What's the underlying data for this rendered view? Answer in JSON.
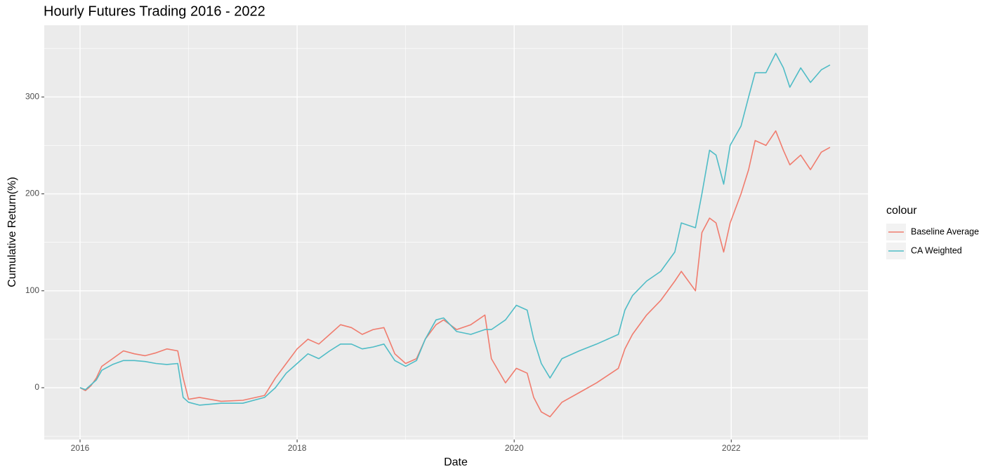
{
  "chart_data": {
    "type": "line",
    "title": "Hourly Futures Trading 2016 - 2022",
    "x_label": "Date",
    "y_label": "Cumulative Return(%)",
    "legend_title": "colour",
    "x": [
      2016.0,
      2016.05,
      2016.1,
      2016.15,
      2016.2,
      2016.3,
      2016.4,
      2016.5,
      2016.6,
      2016.7,
      2016.8,
      2016.9,
      2016.95,
      2017.0,
      2017.1,
      2017.3,
      2017.5,
      2017.7,
      2017.8,
      2017.9,
      2018.0,
      2018.1,
      2018.2,
      2018.3,
      2018.4,
      2018.5,
      2018.6,
      2018.7,
      2018.8,
      2018.9,
      2019.0,
      2019.1,
      2019.18,
      2019.28,
      2019.35,
      2019.47,
      2019.6,
      2019.73,
      2019.79,
      2019.92,
      2020.02,
      2020.12,
      2020.18,
      2020.25,
      2020.33,
      2020.44,
      2020.6,
      2020.76,
      2020.96,
      2021.02,
      2021.09,
      2021.22,
      2021.35,
      2021.48,
      2021.54,
      2021.67,
      2021.73,
      2021.8,
      2021.86,
      2021.93,
      2021.99,
      2022.09,
      2022.16,
      2022.22,
      2022.32,
      2022.41,
      2022.48,
      2022.54,
      2022.64,
      2022.73,
      2022.83,
      2022.91
    ],
    "series": [
      {
        "name": "Baseline Average",
        "color": "#f07c6e",
        "values": [
          0,
          -3,
          2,
          10,
          22,
          30,
          38,
          35,
          33,
          36,
          40,
          38,
          10,
          -12,
          -10,
          -14,
          -13,
          -8,
          10,
          25,
          40,
          50,
          45,
          55,
          65,
          62,
          55,
          60,
          62,
          35,
          25,
          30,
          50,
          65,
          70,
          60,
          65,
          75,
          30,
          5,
          20,
          15,
          -10,
          -25,
          -30,
          -15,
          -5,
          5,
          20,
          40,
          55,
          75,
          90,
          110,
          120,
          100,
          160,
          175,
          170,
          140,
          170,
          200,
          225,
          255,
          250,
          265,
          245,
          230,
          240,
          225,
          243,
          248
        ]
      },
      {
        "name": "CA Weighted",
        "color": "#4fbcc6",
        "values": [
          0,
          -2,
          3,
          8,
          18,
          24,
          28,
          28,
          27,
          25,
          24,
          25,
          -10,
          -15,
          -18,
          -16,
          -16,
          -10,
          0,
          15,
          25,
          35,
          30,
          38,
          45,
          45,
          40,
          42,
          45,
          28,
          22,
          28,
          50,
          70,
          72,
          58,
          55,
          60,
          60,
          70,
          85,
          80,
          50,
          25,
          10,
          30,
          38,
          45,
          55,
          80,
          95,
          110,
          120,
          140,
          170,
          165,
          200,
          245,
          240,
          210,
          250,
          270,
          300,
          325,
          325,
          345,
          330,
          310,
          330,
          315,
          328,
          333
        ]
      }
    ],
    "xlim": [
      2015.67,
      2023.26
    ],
    "xticks": [
      2016,
      2018,
      2020,
      2022
    ],
    "minor_xticks": [
      2017,
      2019,
      2021,
      2023
    ],
    "ylim": [
      -53.5,
      374
    ],
    "yticks": [
      0,
      100,
      200,
      300
    ],
    "minor_yticks": [
      -50,
      50,
      150,
      250,
      350
    ],
    "grid": true
  }
}
